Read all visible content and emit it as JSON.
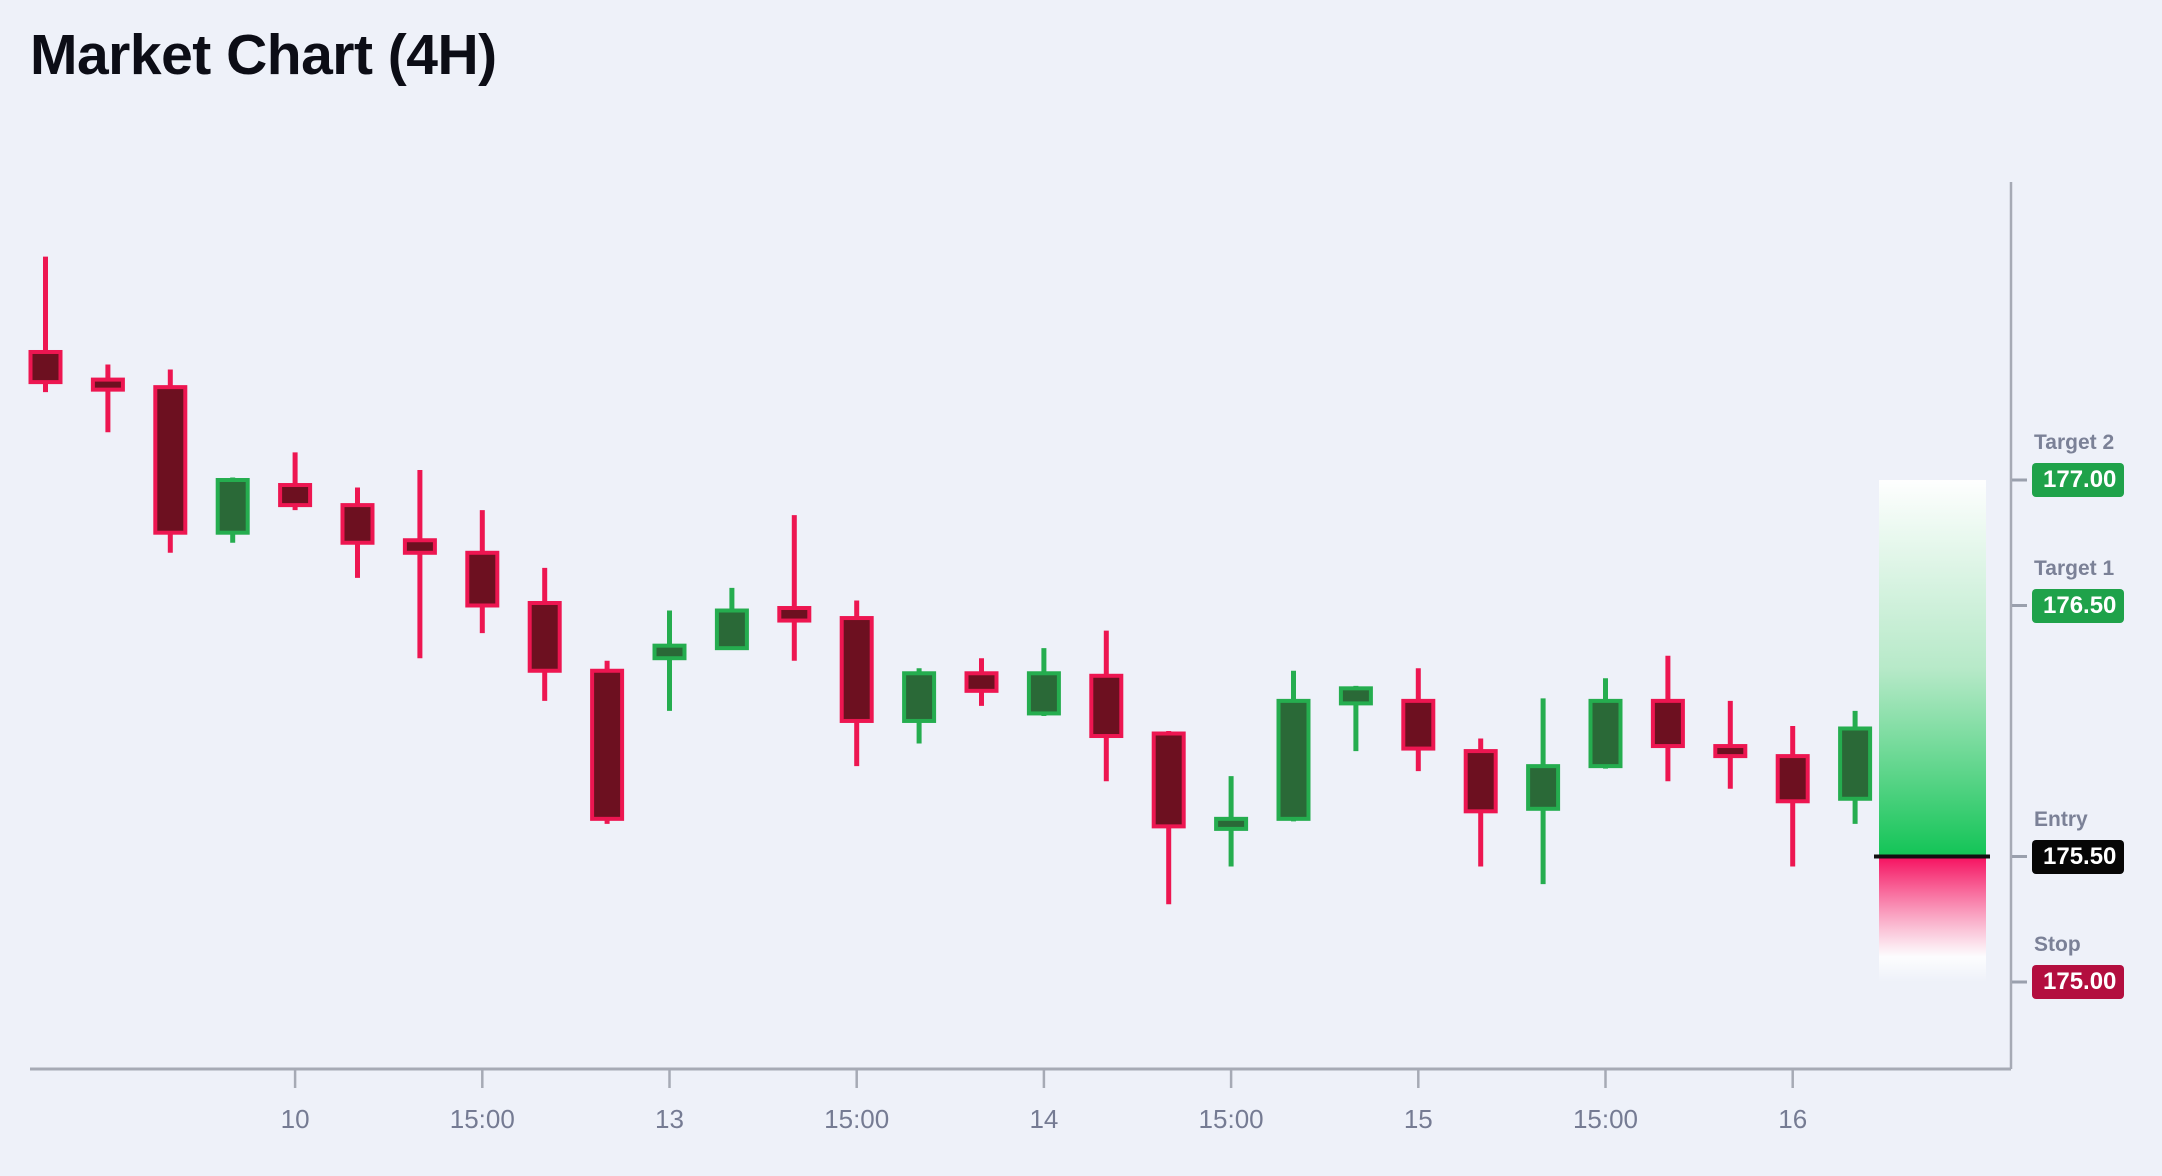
{
  "title": "Market Chart (4H)",
  "colors": {
    "background": "#eef1f9",
    "bull_fill": "#2a6937",
    "bull_stroke": "#25ad4f",
    "bear_fill": "#6d1020",
    "bear_stroke": "#ed1651",
    "axis": "#a6aab5",
    "tick_text": "#757b93",
    "level_label_text": "#7b8197",
    "target_badge": "#1fa24a",
    "entry_badge": "#060606",
    "stop_badge": "#b30e3f",
    "entry_line": "#111111",
    "zone_green": "#12c456",
    "zone_pink": "#f5105f"
  },
  "chart_data": {
    "type": "candlestick",
    "title": "Market Chart (4H)",
    "timeframe": "4H",
    "x_tick_labels": [
      {
        "candle_index": 4,
        "label": "10"
      },
      {
        "candle_index": 7,
        "label": "15:00"
      },
      {
        "candle_index": 10,
        "label": "13"
      },
      {
        "candle_index": 13,
        "label": "15:00"
      },
      {
        "candle_index": 16,
        "label": "14"
      },
      {
        "candle_index": 19,
        "label": "15:00"
      },
      {
        "candle_index": 22,
        "label": "15"
      },
      {
        "candle_index": 25,
        "label": "15:00"
      },
      {
        "candle_index": 28,
        "label": "16"
      }
    ],
    "y_axis_range": [
      174.6,
      178.4
    ],
    "grid": "off",
    "candles": [
      {
        "o": 177.51,
        "h": 177.89,
        "l": 177.35,
        "c": 177.39
      },
      {
        "o": 177.4,
        "h": 177.46,
        "l": 177.19,
        "c": 177.36
      },
      {
        "o": 177.37,
        "h": 177.44,
        "l": 176.71,
        "c": 176.79
      },
      {
        "o": 176.79,
        "h": 177.01,
        "l": 176.75,
        "c": 177.0
      },
      {
        "o": 176.98,
        "h": 177.11,
        "l": 176.88,
        "c": 176.9
      },
      {
        "o": 176.9,
        "h": 176.97,
        "l": 176.61,
        "c": 176.75
      },
      {
        "o": 176.76,
        "h": 177.04,
        "l": 176.29,
        "c": 176.71
      },
      {
        "o": 176.71,
        "h": 176.88,
        "l": 176.39,
        "c": 176.5
      },
      {
        "o": 176.51,
        "h": 176.65,
        "l": 176.12,
        "c": 176.24
      },
      {
        "o": 176.24,
        "h": 176.28,
        "l": 175.63,
        "c": 175.65
      },
      {
        "o": 176.29,
        "h": 176.48,
        "l": 176.08,
        "c": 176.34
      },
      {
        "o": 176.33,
        "h": 176.57,
        "l": 176.33,
        "c": 176.48
      },
      {
        "o": 176.49,
        "h": 176.86,
        "l": 176.28,
        "c": 176.44
      },
      {
        "o": 176.45,
        "h": 176.52,
        "l": 175.86,
        "c": 176.04
      },
      {
        "o": 176.04,
        "h": 176.25,
        "l": 175.95,
        "c": 176.23
      },
      {
        "o": 176.23,
        "h": 176.29,
        "l": 176.1,
        "c": 176.16
      },
      {
        "o": 176.07,
        "h": 176.33,
        "l": 176.06,
        "c": 176.23
      },
      {
        "o": 176.22,
        "h": 176.4,
        "l": 175.8,
        "c": 175.98
      },
      {
        "o": 175.99,
        "h": 176.0,
        "l": 175.31,
        "c": 175.62
      },
      {
        "o": 175.61,
        "h": 175.82,
        "l": 175.46,
        "c": 175.65
      },
      {
        "o": 175.65,
        "h": 176.24,
        "l": 175.64,
        "c": 176.12
      },
      {
        "o": 176.11,
        "h": 176.18,
        "l": 175.92,
        "c": 176.17
      },
      {
        "o": 176.12,
        "h": 176.25,
        "l": 175.84,
        "c": 175.93
      },
      {
        "o": 175.92,
        "h": 175.97,
        "l": 175.46,
        "c": 175.68
      },
      {
        "o": 175.69,
        "h": 176.13,
        "l": 175.39,
        "c": 175.86
      },
      {
        "o": 175.86,
        "h": 176.21,
        "l": 175.85,
        "c": 176.12
      },
      {
        "o": 176.12,
        "h": 176.3,
        "l": 175.8,
        "c": 175.94
      },
      {
        "o": 175.94,
        "h": 176.12,
        "l": 175.77,
        "c": 175.9
      },
      {
        "o": 175.9,
        "h": 176.02,
        "l": 175.46,
        "c": 175.72
      },
      {
        "o": 175.73,
        "h": 176.08,
        "l": 175.63,
        "c": 176.01
      }
    ],
    "levels": [
      {
        "id": "target-2",
        "label": "Target 2",
        "value": "177.00",
        "price": 177.0,
        "style": "target"
      },
      {
        "id": "target-1",
        "label": "Target 1",
        "value": "176.50",
        "price": 176.5,
        "style": "target"
      },
      {
        "id": "entry",
        "label": "Entry",
        "value": "175.50",
        "price": 175.5,
        "style": "entry"
      },
      {
        "id": "stop",
        "label": "Stop",
        "value": "175.00",
        "price": 175.0,
        "style": "stop"
      }
    ],
    "zone": {
      "top_price": 177.0,
      "entry_price": 175.5,
      "bottom_price": 175.0
    },
    "legend": "none"
  }
}
